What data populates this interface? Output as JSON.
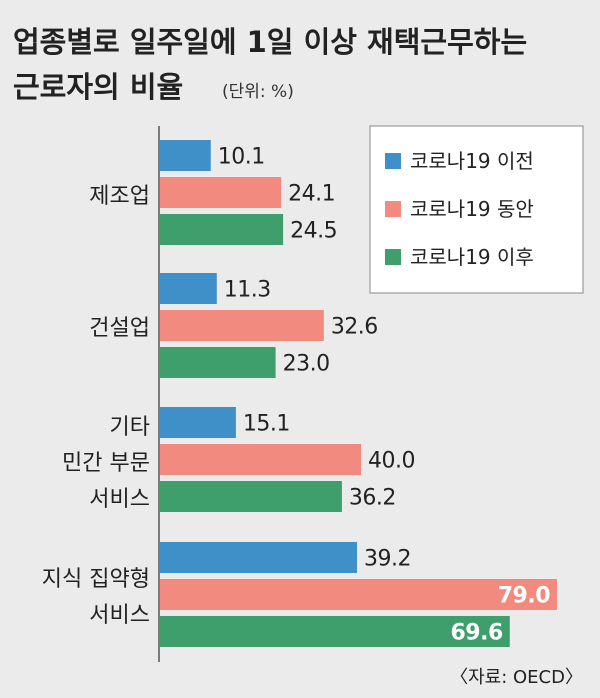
{
  "chart_data": {
    "type": "bar",
    "orientation": "horizontal",
    "title_lines": [
      "업종별로 일주일에 1일 이상 재택근무하는",
      "근로자의 비율"
    ],
    "unit": "(단위: %)",
    "categories": [
      [
        "제조업"
      ],
      [
        "건설업"
      ],
      [
        "기타",
        "민간 부문",
        "서비스"
      ],
      [
        "지식 집약형",
        "서비스"
      ]
    ],
    "series": [
      {
        "name": "코로나19 이전",
        "color": "#3f8fc8",
        "values": [
          10.1,
          11.3,
          15.1,
          39.2
        ]
      },
      {
        "name": "코로나19 동안",
        "color": "#f28a80",
        "values": [
          24.1,
          32.6,
          40.0,
          79.0
        ]
      },
      {
        "name": "코로나19 이후",
        "color": "#3e9e6c",
        "values": [
          24.5,
          23.0,
          36.2,
          69.6
        ]
      }
    ],
    "value_labels": [
      [
        "10.1",
        "11.3",
        "15.1",
        "39.2"
      ],
      [
        "24.1",
        "32.6",
        "40.0",
        "79.0"
      ],
      [
        "24.5",
        "23.0",
        "36.2",
        "69.6"
      ]
    ],
    "xlim": [
      0,
      80
    ],
    "legend_position": "top-right",
    "source": "〈자료: OECD〉"
  }
}
